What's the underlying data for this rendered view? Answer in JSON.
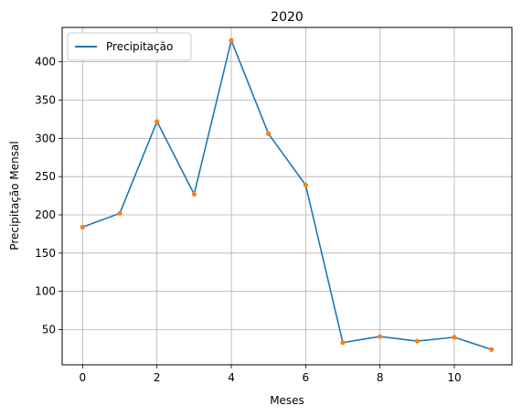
{
  "chart_data": {
    "type": "line",
    "title": "2020",
    "xlabel": "Meses",
    "ylabel": "Precipitação Mensal",
    "x": [
      0,
      1,
      2,
      3,
      4,
      5,
      6,
      7,
      8,
      9,
      10,
      11
    ],
    "series": [
      {
        "name": "Precipitação",
        "values": [
          184,
          202,
          322,
          227,
          428,
          306,
          239,
          33,
          41,
          35,
          40,
          24
        ]
      }
    ],
    "xlim": [
      -0.55,
      11.55
    ],
    "ylim": [
      4,
      445
    ],
    "xticks": [
      0,
      2,
      4,
      6,
      8,
      10
    ],
    "yticks": [
      50,
      100,
      150,
      200,
      250,
      300,
      350,
      400
    ],
    "grid": true,
    "legend_position": "upper-left",
    "colors": {
      "line": "#1f77b4",
      "markers": "#ff7f0e",
      "grid": "#b0b0b0",
      "axes": "#000000"
    }
  }
}
